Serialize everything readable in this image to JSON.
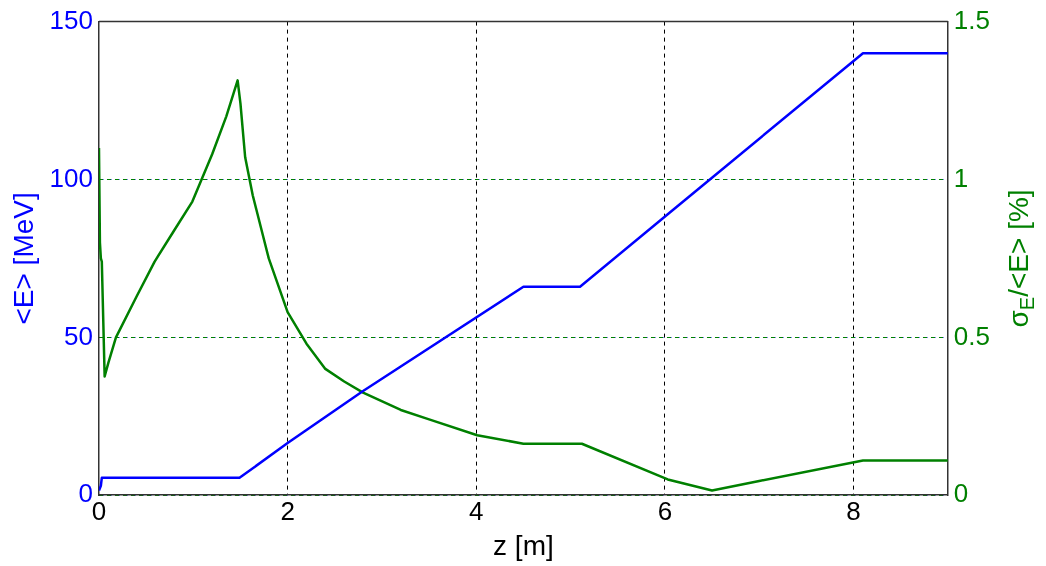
{
  "chart_data": {
    "type": "line",
    "xlabel": "z [m]",
    "ylabel": "<E> [MeV]",
    "y2label": "σ$_{E}$/<E> [%]",
    "xlim": [
      0,
      9
    ],
    "xticks": [
      0,
      2,
      4,
      6,
      8
    ],
    "ylim": [
      0,
      150
    ],
    "yticks": [
      0,
      50,
      100,
      150
    ],
    "y2lim": [
      0,
      1.5
    ],
    "y2ticks": [
      0,
      0.5,
      1,
      1.5
    ],
    "grid": true,
    "legend": false,
    "marker": "none",
    "line_style": "solid",
    "series": [
      {
        "color": "#0000ff",
        "x": [
          0,
          0.02,
          0.03,
          0.08,
          1.49,
          2,
          2.8,
          4.5,
          5.1,
          6.03,
          8.1,
          9
        ],
        "values": [
          1.5,
          3,
          5.5,
          5.5,
          5.5,
          16.5,
          33,
          66,
          66,
          89,
          140,
          140
        ]
      },
      {
        "color": "#008000",
        "axis": "y2",
        "x": [
          0,
          0.01,
          0.02,
          0.03,
          0.06,
          0.1,
          0.18,
          0.4,
          0.59,
          0.8,
          0.99,
          1.2,
          1.35,
          1.47,
          1.5,
          1.55,
          1.63,
          1.8,
          2,
          2.2,
          2.4,
          2.6,
          2.8,
          3.2,
          3.5,
          4.01,
          4.5,
          5.12,
          6.03,
          6.5,
          7,
          8.1,
          9
        ],
        "values": [
          1.1,
          0.8,
          0.75,
          0.74,
          0.376,
          0.42,
          0.5,
          0.63,
          0.74,
          0.84,
          0.93,
          1.08,
          1.2,
          1.314,
          1.24,
          1.07,
          0.95,
          0.75,
          0.58,
          0.48,
          0.4,
          0.36,
          0.325,
          0.27,
          0.24,
          0.19,
          0.163,
          0.163,
          0.05,
          0.015,
          0.045,
          0.11,
          0.11
        ]
      }
    ]
  }
}
